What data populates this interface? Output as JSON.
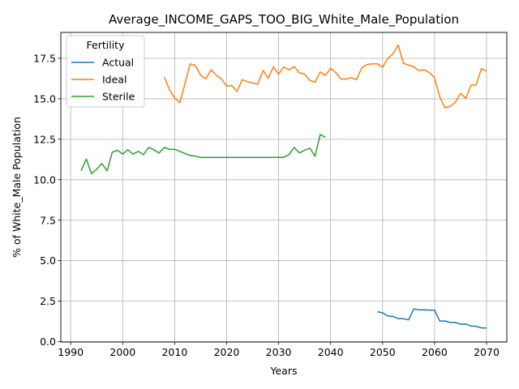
{
  "chart_data": {
    "type": "line",
    "title": "Average_INCOME_GAPS_TOO_BIG_White_Male_Population",
    "xlabel": "Years",
    "ylabel": "% of White_Male Population",
    "xlim": [
      1988.1,
      2073.9
    ],
    "ylim": [
      -0.02,
      19.1
    ],
    "x_ticks": [
      1990,
      2000,
      2010,
      2020,
      2030,
      2040,
      2050,
      2060,
      2070
    ],
    "x_tick_labels": [
      "1990",
      "2000",
      "2010",
      "2020",
      "2030",
      "2040",
      "2050",
      "2060",
      "2070"
    ],
    "y_ticks": [
      0,
      2.5,
      5,
      7.5,
      10,
      12.5,
      15,
      17.5
    ],
    "y_tick_labels": [
      "0.0",
      "2.5",
      "5.0",
      "7.5",
      "10.0",
      "12.5",
      "15.0",
      "17.5"
    ],
    "grid": true,
    "legend": {
      "title": "Fertility",
      "placement": "upper-left"
    },
    "series": [
      {
        "name": "Actual",
        "color": "#1f77b4",
        "x": [
          2049,
          2050,
          2051,
          2052,
          2053,
          2054,
          2055,
          2056,
          2057,
          2058,
          2059,
          2060,
          2061,
          2062,
          2063,
          2064,
          2065,
          2066,
          2067,
          2068,
          2069,
          2070
        ],
        "y": [
          1.85,
          1.78,
          1.58,
          1.56,
          1.42,
          1.42,
          1.34,
          2.02,
          1.96,
          1.97,
          1.94,
          1.94,
          1.27,
          1.28,
          1.18,
          1.19,
          1.08,
          1.09,
          0.96,
          0.95,
          0.85,
          0.84
        ]
      },
      {
        "name": "Ideal",
        "color": "#ff7f0e",
        "x": [
          2008,
          2009,
          2010,
          2011,
          2012,
          2013,
          2014,
          2015,
          2016,
          2017,
          2018,
          2019,
          2020,
          2021,
          2022,
          2023,
          2024,
          2025,
          2026,
          2027,
          2028,
          2029,
          2030,
          2031,
          2032,
          2033,
          2034,
          2035,
          2036,
          2037,
          2038,
          2039,
          2040,
          2041,
          2042,
          2043,
          2044,
          2045,
          2046,
          2047,
          2048,
          2049,
          2050,
          2051,
          2052,
          2053,
          2054,
          2055,
          2056,
          2057,
          2058,
          2059,
          2060,
          2061,
          2062,
          2063,
          2064,
          2065,
          2066,
          2067,
          2068,
          2069,
          2070
        ],
        "y": [
          16.35,
          15.55,
          15.05,
          14.76,
          15.95,
          17.16,
          17.05,
          16.45,
          16.22,
          16.8,
          16.45,
          16.23,
          15.79,
          15.81,
          15.45,
          16.18,
          16.05,
          15.98,
          15.9,
          16.75,
          16.26,
          16.98,
          16.51,
          16.98,
          16.78,
          16.99,
          16.6,
          16.52,
          16.14,
          16.02,
          16.66,
          16.44,
          16.89,
          16.62,
          16.22,
          16.22,
          16.3,
          16.18,
          16.92,
          17.12,
          17.16,
          17.16,
          16.95,
          17.5,
          17.78,
          18.32,
          17.2,
          17.08,
          16.98,
          16.74,
          16.8,
          16.62,
          16.3,
          15.12,
          14.45,
          14.53,
          14.78,
          15.34,
          15.03,
          15.84,
          15.86,
          16.86,
          16.72
        ]
      },
      {
        "name": "Sterile",
        "color": "#2ca02c",
        "x": [
          1992,
          1993,
          1994,
          1995,
          1996,
          1997,
          1998,
          1999,
          2000,
          2001,
          2002,
          2003,
          2004,
          2005,
          2006,
          2007,
          2008,
          2009,
          2010,
          2011,
          2012,
          2013,
          2014,
          2015,
          2016,
          2017,
          2018,
          2019,
          2020,
          2021,
          2022,
          2023,
          2024,
          2025,
          2026,
          2027,
          2028,
          2029,
          2030,
          2031,
          2032,
          2033,
          2034,
          2035,
          2036,
          2037,
          2038,
          2039
        ],
        "y": [
          10.55,
          11.28,
          10.38,
          10.65,
          11.0,
          10.55,
          11.7,
          11.82,
          11.58,
          11.85,
          11.58,
          11.75,
          11.55,
          12.0,
          11.85,
          11.65,
          12.0,
          11.88,
          11.88,
          11.75,
          11.62,
          11.5,
          11.45,
          11.38,
          11.38,
          11.38,
          11.38,
          11.38,
          11.38,
          11.38,
          11.38,
          11.38,
          11.38,
          11.38,
          11.38,
          11.38,
          11.38,
          11.38,
          11.38,
          11.38,
          11.55,
          12.0,
          11.65,
          11.82,
          11.95,
          11.45,
          12.8,
          12.62
        ]
      }
    ]
  }
}
